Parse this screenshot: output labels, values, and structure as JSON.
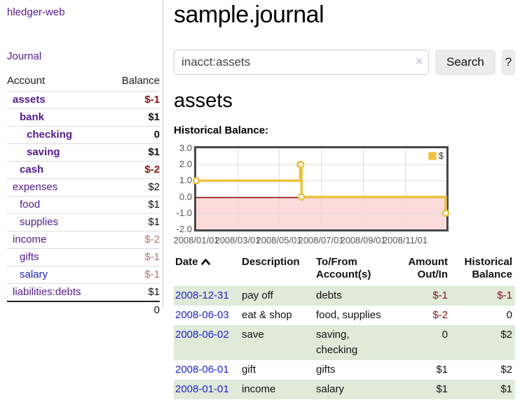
{
  "app": {
    "name": "hledger-web"
  },
  "sidebar": {
    "journal_link": "Journal",
    "account_table": {
      "headers": {
        "account": "Account",
        "balance": "Balance"
      },
      "accounts": [
        {
          "name": "assets",
          "balance": "$-1"
        },
        {
          "name": "bank",
          "balance": "$1"
        },
        {
          "name": "checking",
          "balance": "0"
        },
        {
          "name": "saving",
          "balance": "$1"
        },
        {
          "name": "cash",
          "balance": "$-2"
        },
        {
          "name": "expenses",
          "balance": "$2"
        },
        {
          "name": "food",
          "balance": "$1"
        },
        {
          "name": "supplies",
          "balance": "$1"
        },
        {
          "name": "income",
          "balance": "$-2"
        },
        {
          "name": "gifts",
          "balance": "$-1"
        },
        {
          "name": "salary",
          "balance": "$-1"
        },
        {
          "name": "liabilities:debts",
          "balance": "$1"
        }
      ],
      "total": "0"
    }
  },
  "main": {
    "title": "sample.journal",
    "search": {
      "value": "inacct:assets",
      "clear_icon": "×",
      "search_button": "Search",
      "help_button": "?"
    },
    "account_heading": "assets",
    "section_label": "Historical Balance:"
  },
  "register": {
    "headers": {
      "date": "Date",
      "description": "Description",
      "accounts": "To/From Account(s)",
      "amount": "Amount Out/In",
      "balance": "Historical Balance"
    },
    "sort_icon": "chevron-up",
    "rows": [
      {
        "date": "2008-12-31",
        "description": "pay off",
        "accounts": "debts",
        "amount": "$-1",
        "balance": "$-1"
      },
      {
        "date": "2008-06-03",
        "description": "eat & shop",
        "accounts": "food, supplies",
        "amount": "$-2",
        "balance": "0"
      },
      {
        "date": "2008-06-02",
        "description": "save",
        "accounts": "saving, checking",
        "amount": "0",
        "balance": "$2"
      },
      {
        "date": "2008-06-01",
        "description": "gift",
        "accounts": "gifts",
        "amount": "$1",
        "balance": "$2"
      },
      {
        "date": "2008-01-01",
        "description": "income",
        "accounts": "salary",
        "amount": "$1",
        "balance": "$1"
      }
    ]
  },
  "chart_data": {
    "type": "line",
    "title": "Historical Balance",
    "step": true,
    "series": [
      {
        "name": "$",
        "points": [
          [
            "2008-01-01",
            1
          ],
          [
            "2008-06-01",
            2
          ],
          [
            "2008-06-02",
            2
          ],
          [
            "2008-06-03",
            0
          ],
          [
            "2008-12-31",
            -1
          ]
        ]
      }
    ],
    "x_ticks": [
      "2008/01/01",
      "2008/03/01",
      "2008/05/01",
      "2008/07/01",
      "2008/09/01",
      "2008/11/01"
    ],
    "y_ticks": [
      "3.0",
      "2.0",
      "1.0",
      "0.0",
      "-1.0",
      "-2.0"
    ],
    "xlim": [
      "2008-01-01",
      "2009-01-01"
    ],
    "ylim": [
      -2,
      3
    ],
    "grid": true,
    "legend": {
      "label": "$",
      "position": "top-right"
    },
    "colors": {
      "line": "#edc240",
      "negative_fill": "#fbdada",
      "zero_line": "#8b0000",
      "grid": "#dedede"
    }
  },
  "colors": {
    "link_purple": "#551a8b",
    "link_blue": "#2222cc",
    "neg_strong": "#8b1010",
    "neg_soft": "#b57070",
    "row_green": "#dfead9",
    "accent_gold": "#edc240"
  }
}
